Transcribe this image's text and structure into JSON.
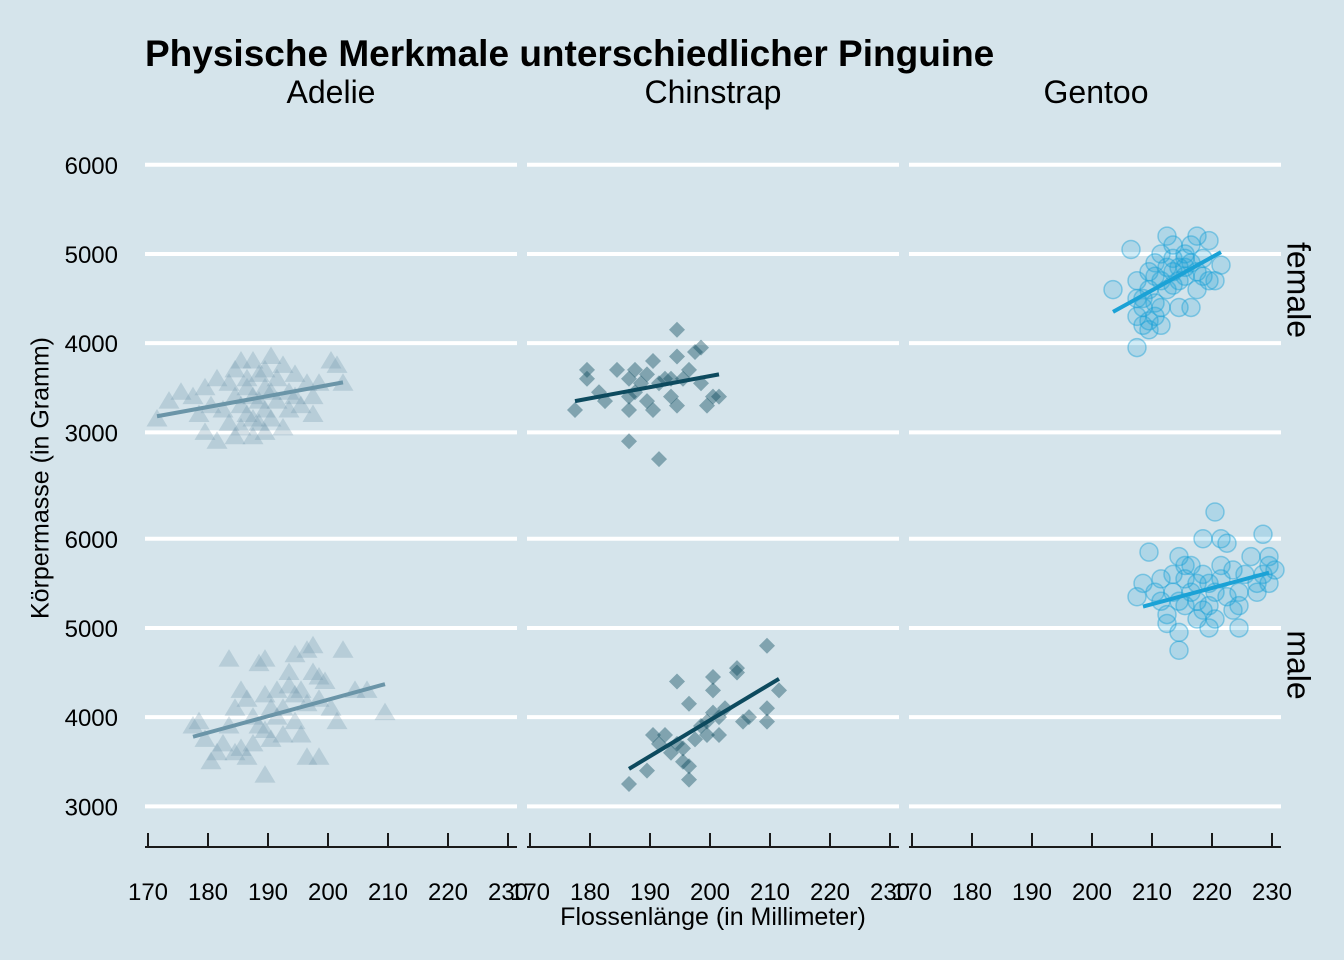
{
  "chart_data": {
    "type": "scatter",
    "title": "Physische Merkmale unterschiedlicher Pinguine",
    "xlabel": "Flossenlänge (in Millimeter)",
    "ylabel": "Körpermasse (in Gramm)",
    "columns": [
      "Adelie",
      "Chinstrap",
      "Gentoo"
    ],
    "rows": [
      "female",
      "male"
    ],
    "xlim": [
      170,
      232
    ],
    "ylim": [
      2600,
      6300
    ],
    "x_ticks": [
      170,
      180,
      190,
      200,
      210,
      220,
      230
    ],
    "y_ticks": [
      3000,
      4000,
      5000,
      6000
    ],
    "grid": "horizontal",
    "colors": {
      "Adelie": "#6b95a8",
      "Chinstrap": "#0d4a5e",
      "Gentoo": "#1ba2d6",
      "background": "#d5e4eb"
    },
    "markers": {
      "Adelie": "triangle",
      "Chinstrap": "diamond",
      "Gentoo": "circle"
    },
    "panels": [
      {
        "species": "Adelie",
        "sex": "female",
        "trend": {
          "x": [
            172,
            203
          ],
          "y": [
            3180,
            3560
          ]
        },
        "points": [
          [
            172,
            3150
          ],
          [
            174,
            3350
          ],
          [
            176,
            3450
          ],
          [
            178,
            3400
          ],
          [
            179,
            3200
          ],
          [
            180,
            3000
          ],
          [
            180,
            3500
          ],
          [
            181,
            3300
          ],
          [
            182,
            3600
          ],
          [
            182,
            2900
          ],
          [
            183,
            3250
          ],
          [
            184,
            3550
          ],
          [
            184,
            3100
          ],
          [
            185,
            3700
          ],
          [
            185,
            3400
          ],
          [
            185,
            2950
          ],
          [
            186,
            3800
          ],
          [
            186,
            3300
          ],
          [
            186,
            3050
          ],
          [
            187,
            3500
          ],
          [
            187,
            3200
          ],
          [
            187,
            3600
          ],
          [
            188,
            3800
          ],
          [
            188,
            3400
          ],
          [
            188,
            3150
          ],
          [
            188,
            2950
          ],
          [
            189,
            3650
          ],
          [
            189,
            3350
          ],
          [
            189,
            3100
          ],
          [
            190,
            3700
          ],
          [
            190,
            3500
          ],
          [
            190,
            3250
          ],
          [
            190,
            3000
          ],
          [
            191,
            3850
          ],
          [
            191,
            3450
          ],
          [
            191,
            3150
          ],
          [
            192,
            3600
          ],
          [
            192,
            3350
          ],
          [
            193,
            3750
          ],
          [
            193,
            3050
          ],
          [
            194,
            3450
          ],
          [
            194,
            3250
          ],
          [
            195,
            3650
          ],
          [
            195,
            3400
          ],
          [
            196,
            3300
          ],
          [
            197,
            3550
          ],
          [
            198,
            3400
          ],
          [
            198,
            3200
          ],
          [
            199,
            3550
          ],
          [
            201,
            3800
          ],
          [
            202,
            3750
          ],
          [
            203,
            3550
          ]
        ]
      },
      {
        "species": "Chinstrap",
        "sex": "female",
        "trend": {
          "x": [
            178,
            202
          ],
          "y": [
            3350,
            3650
          ]
        },
        "points": [
          [
            178,
            3250
          ],
          [
            180,
            3700
          ],
          [
            180,
            3600
          ],
          [
            182,
            3450
          ],
          [
            183,
            3350
          ],
          [
            185,
            3700
          ],
          [
            187,
            3600
          ],
          [
            187,
            3400
          ],
          [
            187,
            3250
          ],
          [
            187,
            2900
          ],
          [
            188,
            3450
          ],
          [
            188,
            3700
          ],
          [
            189,
            3550
          ],
          [
            190,
            3350
          ],
          [
            190,
            3650
          ],
          [
            191,
            3800
          ],
          [
            191,
            3250
          ],
          [
            192,
            2700
          ],
          [
            192,
            3550
          ],
          [
            193,
            3600
          ],
          [
            194,
            3400
          ],
          [
            194,
            3600
          ],
          [
            195,
            4150
          ],
          [
            195,
            3850
          ],
          [
            195,
            3300
          ],
          [
            196,
            3600
          ],
          [
            197,
            3700
          ],
          [
            198,
            3900
          ],
          [
            199,
            3550
          ],
          [
            199,
            3950
          ],
          [
            200,
            3300
          ],
          [
            201,
            3400
          ],
          [
            202,
            3400
          ]
        ]
      },
      {
        "species": "Gentoo",
        "sex": "female",
        "trend": {
          "x": [
            204,
            222
          ],
          "y": [
            4350,
            5020
          ]
        },
        "points": [
          [
            204,
            4600
          ],
          [
            207,
            5050
          ],
          [
            208,
            4700
          ],
          [
            208,
            4500
          ],
          [
            208,
            4300
          ],
          [
            208,
            3950
          ],
          [
            209,
            4500
          ],
          [
            209,
            4200
          ],
          [
            209,
            4400
          ],
          [
            210,
            4800
          ],
          [
            210,
            4600
          ],
          [
            210,
            4250
          ],
          [
            210,
            4150
          ],
          [
            211,
            4750
          ],
          [
            211,
            4900
          ],
          [
            211,
            4450
          ],
          [
            211,
            4300
          ],
          [
            212,
            5000
          ],
          [
            212,
            4700
          ],
          [
            212,
            4400
          ],
          [
            212,
            4200
          ],
          [
            213,
            5200
          ],
          [
            213,
            4850
          ],
          [
            213,
            4600
          ],
          [
            214,
            5100
          ],
          [
            214,
            4950
          ],
          [
            214,
            4650
          ],
          [
            214,
            4800
          ],
          [
            215,
            4700
          ],
          [
            215,
            4850
          ],
          [
            215,
            4400
          ],
          [
            216,
            5000
          ],
          [
            216,
            4850
          ],
          [
            216,
            4750
          ],
          [
            216,
            4950
          ],
          [
            217,
            5100
          ],
          [
            217,
            4900
          ],
          [
            217,
            4400
          ],
          [
            218,
            4800
          ],
          [
            218,
            5200
          ],
          [
            218,
            4600
          ],
          [
            219,
            4750
          ],
          [
            219,
            4950
          ],
          [
            220,
            5150
          ],
          [
            220,
            4700
          ],
          [
            221,
            4700
          ],
          [
            222,
            4875
          ]
        ]
      },
      {
        "species": "Adelie",
        "sex": "male",
        "trend": {
          "x": [
            178,
            210
          ],
          "y": [
            3780,
            4370
          ]
        },
        "points": [
          [
            178,
            3900
          ],
          [
            179,
            3950
          ],
          [
            180,
            3750
          ],
          [
            181,
            3500
          ],
          [
            182,
            3600
          ],
          [
            183,
            3700
          ],
          [
            184,
            4650
          ],
          [
            184,
            3900
          ],
          [
            185,
            4100
          ],
          [
            185,
            3600
          ],
          [
            186,
            4300
          ],
          [
            186,
            3650
          ],
          [
            187,
            3550
          ],
          [
            187,
            4200
          ],
          [
            188,
            4000
          ],
          [
            188,
            3700
          ],
          [
            189,
            4600
          ],
          [
            189,
            3900
          ],
          [
            190,
            4650
          ],
          [
            190,
            4250
          ],
          [
            190,
            3850
          ],
          [
            190,
            3350
          ],
          [
            191,
            4100
          ],
          [
            191,
            3750
          ],
          [
            192,
            4000
          ],
          [
            192,
            4300
          ],
          [
            193,
            3800
          ],
          [
            193,
            4100
          ],
          [
            194,
            4350
          ],
          [
            194,
            4500
          ],
          [
            195,
            4700
          ],
          [
            195,
            4250
          ],
          [
            195,
            3950
          ],
          [
            196,
            3800
          ],
          [
            196,
            4300
          ],
          [
            197,
            4750
          ],
          [
            197,
            4150
          ],
          [
            197,
            3550
          ],
          [
            198,
            4800
          ],
          [
            198,
            4500
          ],
          [
            199,
            4450
          ],
          [
            199,
            4200
          ],
          [
            199,
            3550
          ],
          [
            200,
            4400
          ],
          [
            201,
            4100
          ],
          [
            202,
            3950
          ],
          [
            203,
            4750
          ],
          [
            205,
            4300
          ],
          [
            207,
            4300
          ],
          [
            210,
            4050
          ]
        ]
      },
      {
        "species": "Chinstrap",
        "sex": "male",
        "trend": {
          "x": [
            187,
            212
          ],
          "y": [
            3420,
            4430
          ]
        },
        "points": [
          [
            187,
            3250
          ],
          [
            190,
            3400
          ],
          [
            191,
            3800
          ],
          [
            192,
            3700
          ],
          [
            193,
            3800
          ],
          [
            194,
            3600
          ],
          [
            195,
            4400
          ],
          [
            195,
            3700
          ],
          [
            196,
            3500
          ],
          [
            196,
            3650
          ],
          [
            197,
            4150
          ],
          [
            197,
            3300
          ],
          [
            197,
            3450
          ],
          [
            198,
            3750
          ],
          [
            199,
            3900
          ],
          [
            200,
            3950
          ],
          [
            200,
            3800
          ],
          [
            201,
            4050
          ],
          [
            201,
            4300
          ],
          [
            201,
            4450
          ],
          [
            202,
            4000
          ],
          [
            202,
            3800
          ],
          [
            203,
            4100
          ],
          [
            205,
            4500
          ],
          [
            205,
            4550
          ],
          [
            206,
            3950
          ],
          [
            207,
            4000
          ],
          [
            210,
            4800
          ],
          [
            210,
            3950
          ],
          [
            210,
            4100
          ],
          [
            212,
            4300
          ]
        ]
      },
      {
        "species": "Gentoo",
        "sex": "male",
        "trend": {
          "x": [
            209,
            230
          ],
          "y": [
            5240,
            5620
          ]
        },
        "points": [
          [
            208,
            5350
          ],
          [
            209,
            5500
          ],
          [
            210,
            5850
          ],
          [
            211,
            5400
          ],
          [
            212,
            5300
          ],
          [
            212,
            5550
          ],
          [
            213,
            5050
          ],
          [
            213,
            5150
          ],
          [
            214,
            5600
          ],
          [
            214,
            5400
          ],
          [
            215,
            4950
          ],
          [
            215,
            4750
          ],
          [
            215,
            5800
          ],
          [
            215,
            5300
          ],
          [
            216,
            5550
          ],
          [
            216,
            5700
          ],
          [
            216,
            5250
          ],
          [
            217,
            5400
          ],
          [
            217,
            5700
          ],
          [
            218,
            5500
          ],
          [
            218,
            5100
          ],
          [
            218,
            5300
          ],
          [
            219,
            5600
          ],
          [
            219,
            6000
          ],
          [
            219,
            5200
          ],
          [
            220,
            5000
          ],
          [
            220,
            5250
          ],
          [
            220,
            5500
          ],
          [
            221,
            6300
          ],
          [
            221,
            5100
          ],
          [
            221,
            5400
          ],
          [
            222,
            5700
          ],
          [
            222,
            5550
          ],
          [
            222,
            6000
          ],
          [
            223,
            5350
          ],
          [
            223,
            5950
          ],
          [
            224,
            5650
          ],
          [
            224,
            5200
          ],
          [
            225,
            5000
          ],
          [
            225,
            5400
          ],
          [
            225,
            5250
          ],
          [
            226,
            5600
          ],
          [
            227,
            5800
          ],
          [
            228,
            5500
          ],
          [
            228,
            5400
          ],
          [
            229,
            6050
          ],
          [
            229,
            5600
          ],
          [
            230,
            5800
          ],
          [
            230,
            5500
          ],
          [
            230,
            5700
          ],
          [
            231,
            5650
          ]
        ]
      }
    ]
  }
}
